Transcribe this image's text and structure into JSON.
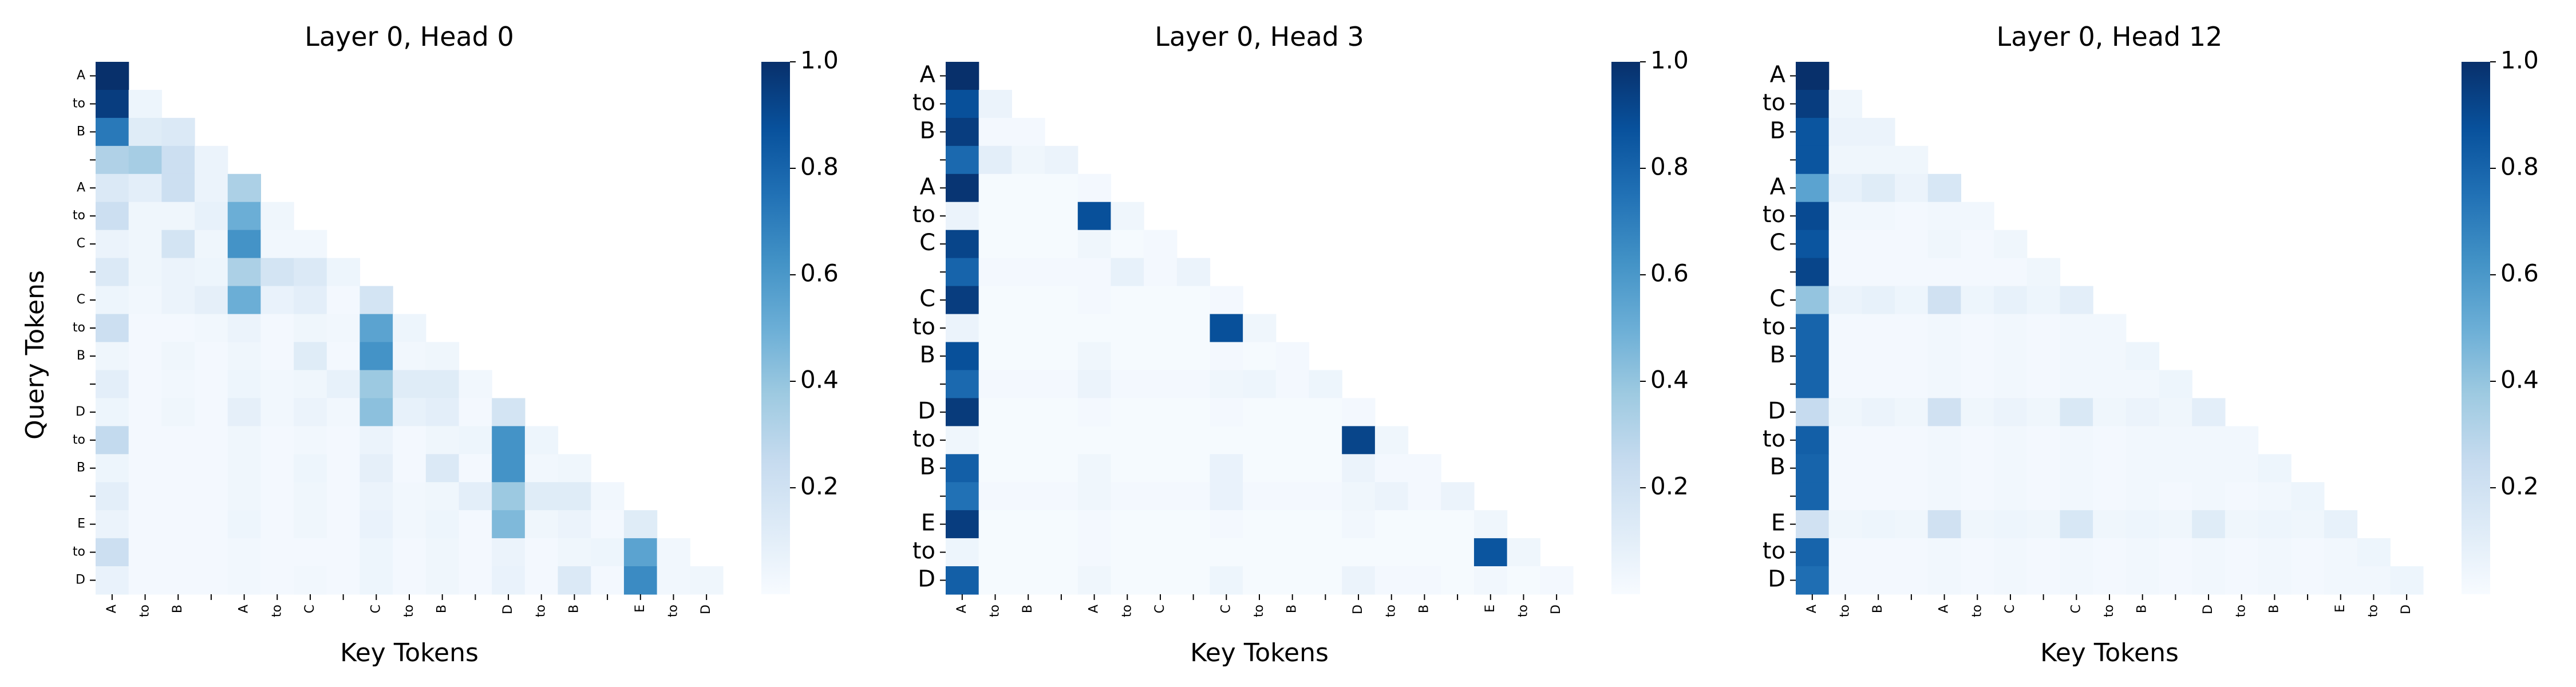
{
  "chart_data": [
    {
      "type": "heatmap",
      "title": "Layer 0, Head 0",
      "xlabel": "Key Tokens",
      "ylabel": "Query Tokens",
      "tokens": [
        "A",
        "to",
        "B",
        "",
        "A",
        "to",
        "C",
        "",
        "C",
        "to",
        "B",
        "",
        "D",
        "to",
        "B",
        "",
        "E",
        "to",
        "D"
      ],
      "colormap": "Blues",
      "vmin": 0,
      "vmax": 1.0,
      "colorbar_ticks": [
        0.2,
        0.4,
        0.6,
        0.8,
        1.0
      ],
      "tick_label_style": "small",
      "weights": [
        [
          1.0
        ],
        [
          0.95,
          0.05
        ],
        [
          0.72,
          0.12,
          0.14
        ],
        [
          0.32,
          0.35,
          0.22,
          0.06
        ],
        [
          0.14,
          0.1,
          0.22,
          0.06,
          0.33
        ],
        [
          0.22,
          0.04,
          0.04,
          0.08,
          0.5,
          0.04
        ],
        [
          0.06,
          0.04,
          0.18,
          0.04,
          0.62,
          0.03,
          0.03
        ],
        [
          0.14,
          0.04,
          0.06,
          0.05,
          0.33,
          0.18,
          0.14,
          0.05
        ],
        [
          0.05,
          0.03,
          0.06,
          0.09,
          0.5,
          0.07,
          0.1,
          0.02,
          0.18
        ],
        [
          0.22,
          0.02,
          0.02,
          0.03,
          0.06,
          0.02,
          0.04,
          0.03,
          0.55,
          0.05
        ],
        [
          0.04,
          0.02,
          0.04,
          0.02,
          0.04,
          0.02,
          0.12,
          0.02,
          0.62,
          0.03,
          0.04
        ],
        [
          0.1,
          0.02,
          0.03,
          0.02,
          0.05,
          0.03,
          0.04,
          0.08,
          0.38,
          0.12,
          0.12,
          0.03
        ],
        [
          0.05,
          0.02,
          0.04,
          0.02,
          0.09,
          0.03,
          0.06,
          0.03,
          0.42,
          0.08,
          0.1,
          0.02,
          0.18
        ],
        [
          0.26,
          0.02,
          0.02,
          0.02,
          0.04,
          0.02,
          0.03,
          0.02,
          0.06,
          0.02,
          0.04,
          0.05,
          0.62,
          0.05
        ],
        [
          0.05,
          0.02,
          0.02,
          0.02,
          0.04,
          0.02,
          0.05,
          0.02,
          0.09,
          0.02,
          0.14,
          0.02,
          0.62,
          0.03,
          0.04
        ],
        [
          0.1,
          0.02,
          0.02,
          0.02,
          0.04,
          0.02,
          0.04,
          0.02,
          0.06,
          0.03,
          0.04,
          0.1,
          0.38,
          0.12,
          0.12,
          0.03
        ],
        [
          0.06,
          0.02,
          0.02,
          0.02,
          0.05,
          0.02,
          0.04,
          0.02,
          0.07,
          0.03,
          0.05,
          0.02,
          0.45,
          0.04,
          0.06,
          0.02,
          0.12
        ],
        [
          0.22,
          0.02,
          0.02,
          0.02,
          0.03,
          0.02,
          0.02,
          0.02,
          0.05,
          0.02,
          0.04,
          0.02,
          0.06,
          0.02,
          0.04,
          0.05,
          0.55,
          0.03
        ],
        [
          0.07,
          0.02,
          0.02,
          0.02,
          0.03,
          0.02,
          0.03,
          0.02,
          0.05,
          0.02,
          0.04,
          0.02,
          0.07,
          0.02,
          0.14,
          0.02,
          0.65,
          0.03,
          0.04
        ]
      ]
    },
    {
      "type": "heatmap",
      "title": "Layer 0, Head 3",
      "xlabel": "Key Tokens",
      "ylabel": "",
      "tokens": [
        "A",
        "to",
        "B",
        "",
        "A",
        "to",
        "C",
        "",
        "C",
        "to",
        "B",
        "",
        "D",
        "to",
        "B",
        "",
        "E",
        "to",
        "D"
      ],
      "colormap": "Blues",
      "vmin": 0,
      "vmax": 1.0,
      "colorbar_ticks": [
        0.2,
        0.4,
        0.6,
        0.8,
        1.0
      ],
      "tick_label_style": "large",
      "weights": [
        [
          1.0
        ],
        [
          0.88,
          0.06
        ],
        [
          0.95,
          0.02,
          0.02
        ],
        [
          0.78,
          0.1,
          0.04,
          0.06
        ],
        [
          0.98,
          0.01,
          0.01,
          0.01,
          0.02
        ],
        [
          0.06,
          0.01,
          0.01,
          0.01,
          0.88,
          0.04
        ],
        [
          0.92,
          0.01,
          0.01,
          0.01,
          0.04,
          0.01,
          0.02
        ],
        [
          0.8,
          0.02,
          0.02,
          0.02,
          0.02,
          0.08,
          0.02,
          0.06
        ],
        [
          0.95,
          0.01,
          0.01,
          0.01,
          0.02,
          0.01,
          0.01,
          0.01,
          0.02
        ],
        [
          0.06,
          0.01,
          0.01,
          0.01,
          0.01,
          0.01,
          0.01,
          0.01,
          0.88,
          0.04
        ],
        [
          0.88,
          0.01,
          0.01,
          0.01,
          0.04,
          0.01,
          0.01,
          0.01,
          0.02,
          0.01,
          0.02
        ],
        [
          0.78,
          0.02,
          0.02,
          0.02,
          0.06,
          0.02,
          0.02,
          0.02,
          0.04,
          0.05,
          0.02,
          0.05
        ],
        [
          0.96,
          0.01,
          0.01,
          0.01,
          0.02,
          0.01,
          0.01,
          0.01,
          0.02,
          0.01,
          0.01,
          0.01,
          0.02
        ],
        [
          0.04,
          0.01,
          0.01,
          0.01,
          0.01,
          0.01,
          0.01,
          0.01,
          0.01,
          0.01,
          0.01,
          0.01,
          0.92,
          0.04
        ],
        [
          0.82,
          0.01,
          0.01,
          0.01,
          0.04,
          0.01,
          0.01,
          0.01,
          0.07,
          0.01,
          0.01,
          0.01,
          0.06,
          0.02,
          0.02
        ],
        [
          0.75,
          0.02,
          0.02,
          0.02,
          0.04,
          0.02,
          0.02,
          0.02,
          0.07,
          0.02,
          0.02,
          0.02,
          0.04,
          0.06,
          0.02,
          0.06
        ],
        [
          0.95,
          0.01,
          0.01,
          0.01,
          0.02,
          0.01,
          0.01,
          0.01,
          0.02,
          0.01,
          0.01,
          0.01,
          0.03,
          0.01,
          0.01,
          0.01,
          0.04
        ],
        [
          0.05,
          0.01,
          0.01,
          0.01,
          0.02,
          0.01,
          0.01,
          0.01,
          0.01,
          0.01,
          0.01,
          0.01,
          0.01,
          0.01,
          0.01,
          0.01,
          0.86,
          0.04
        ],
        [
          0.82,
          0.01,
          0.01,
          0.01,
          0.04,
          0.01,
          0.01,
          0.01,
          0.05,
          0.01,
          0.01,
          0.01,
          0.06,
          0.02,
          0.02,
          0.01,
          0.03,
          0.01,
          0.02
        ]
      ]
    },
    {
      "type": "heatmap",
      "title": "Layer 0, Head 12",
      "xlabel": "Key Tokens",
      "ylabel": "",
      "tokens": [
        "A",
        "to",
        "B",
        "",
        "A",
        "to",
        "C",
        "",
        "C",
        "to",
        "B",
        "",
        "D",
        "to",
        "B",
        "",
        "E",
        "to",
        "D"
      ],
      "colormap": "Blues",
      "vmin": 0,
      "vmax": 1.0,
      "colorbar_ticks": [
        0.2,
        0.4,
        0.6,
        0.8,
        1.0
      ],
      "tick_label_style": "large",
      "weights": [
        [
          1.0
        ],
        [
          0.95,
          0.04
        ],
        [
          0.86,
          0.06,
          0.06
        ],
        [
          0.86,
          0.04,
          0.04,
          0.04
        ],
        [
          0.55,
          0.08,
          0.12,
          0.06,
          0.16
        ],
        [
          0.9,
          0.03,
          0.03,
          0.02,
          0.03,
          0.03
        ],
        [
          0.86,
          0.02,
          0.02,
          0.02,
          0.04,
          0.02,
          0.04
        ],
        [
          0.92,
          0.02,
          0.02,
          0.02,
          0.02,
          0.02,
          0.02,
          0.04
        ],
        [
          0.4,
          0.06,
          0.08,
          0.05,
          0.2,
          0.05,
          0.08,
          0.05,
          0.1
        ],
        [
          0.8,
          0.02,
          0.02,
          0.02,
          0.03,
          0.02,
          0.03,
          0.02,
          0.03,
          0.03
        ],
        [
          0.8,
          0.02,
          0.02,
          0.02,
          0.03,
          0.02,
          0.03,
          0.02,
          0.03,
          0.03,
          0.05
        ],
        [
          0.8,
          0.02,
          0.02,
          0.02,
          0.03,
          0.02,
          0.03,
          0.02,
          0.03,
          0.03,
          0.03,
          0.05
        ],
        [
          0.25,
          0.04,
          0.06,
          0.04,
          0.2,
          0.04,
          0.06,
          0.04,
          0.15,
          0.04,
          0.06,
          0.04,
          0.1
        ],
        [
          0.82,
          0.02,
          0.02,
          0.02,
          0.03,
          0.02,
          0.03,
          0.02,
          0.03,
          0.02,
          0.03,
          0.03,
          0.03,
          0.03
        ],
        [
          0.8,
          0.02,
          0.02,
          0.02,
          0.03,
          0.02,
          0.03,
          0.02,
          0.03,
          0.02,
          0.03,
          0.03,
          0.03,
          0.03,
          0.05
        ],
        [
          0.8,
          0.02,
          0.02,
          0.02,
          0.03,
          0.02,
          0.03,
          0.02,
          0.03,
          0.02,
          0.03,
          0.02,
          0.03,
          0.02,
          0.03,
          0.05
        ],
        [
          0.2,
          0.04,
          0.05,
          0.04,
          0.2,
          0.04,
          0.05,
          0.04,
          0.16,
          0.04,
          0.05,
          0.04,
          0.12,
          0.04,
          0.05,
          0.04,
          0.08
        ],
        [
          0.8,
          0.02,
          0.02,
          0.02,
          0.03,
          0.02,
          0.03,
          0.02,
          0.03,
          0.02,
          0.03,
          0.02,
          0.03,
          0.02,
          0.03,
          0.02,
          0.03,
          0.05
        ],
        [
          0.76,
          0.02,
          0.02,
          0.02,
          0.03,
          0.02,
          0.03,
          0.02,
          0.03,
          0.02,
          0.03,
          0.02,
          0.03,
          0.02,
          0.03,
          0.02,
          0.03,
          0.03,
          0.05
        ]
      ]
    }
  ]
}
